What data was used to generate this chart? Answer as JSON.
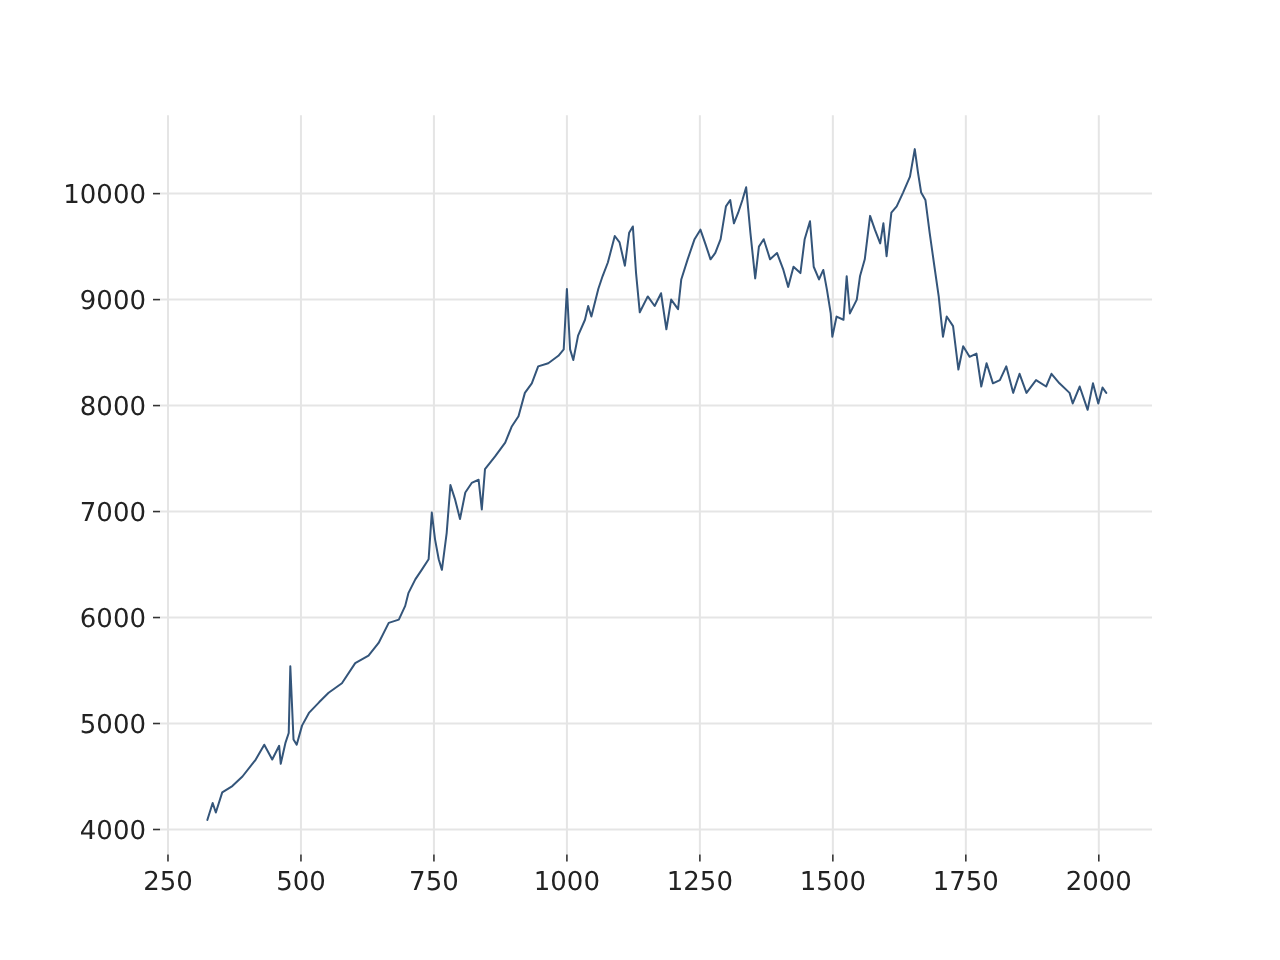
{
  "chart_data": {
    "type": "line",
    "color": "#34557a",
    "x": [
      324,
      334,
      340,
      352,
      371,
      390,
      415,
      431,
      446,
      459,
      462,
      471,
      477,
      480,
      486,
      492,
      502,
      515,
      534,
      552,
      577,
      602,
      627,
      646,
      665,
      684,
      696,
      702,
      715,
      727,
      740,
      746,
      752,
      759,
      765,
      774,
      781,
      790,
      799,
      809,
      821,
      834,
      840,
      846,
      865,
      884,
      896,
      909,
      921,
      934,
      946,
      965,
      984,
      994,
      1000,
      1006,
      1012,
      1021,
      1034,
      1040,
      1046,
      1059,
      1067,
      1077,
      1090,
      1099,
      1109,
      1117,
      1124,
      1130,
      1137,
      1152,
      1165,
      1177,
      1187,
      1196,
      1209,
      1215,
      1227,
      1240,
      1251,
      1260,
      1270,
      1279,
      1289,
      1299,
      1307,
      1314,
      1322,
      1330,
      1337,
      1345,
      1354,
      1361,
      1370,
      1382,
      1395,
      1407,
      1416,
      1426,
      1439,
      1447,
      1457,
      1464,
      1474,
      1482,
      1489,
      1496,
      1499,
      1507,
      1520,
      1526,
      1532,
      1545,
      1551,
      1560,
      1570,
      1579,
      1589,
      1595,
      1601,
      1610,
      1620,
      1632,
      1645,
      1654,
      1660,
      1666,
      1674,
      1682,
      1691,
      1699,
      1707,
      1714,
      1726,
      1736,
      1745,
      1757,
      1770,
      1779,
      1789,
      1801,
      1814,
      1826,
      1839,
      1851,
      1864,
      1882,
      1901,
      1911,
      1926,
      1945,
      1951,
      1964,
      1979,
      1989,
      1999,
      2007,
      2014
    ],
    "values": [
      4090,
      4250,
      4160,
      4350,
      4410,
      4500,
      4660,
      4800,
      4660,
      4790,
      4620,
      4820,
      4910,
      5540,
      4850,
      4800,
      4980,
      5100,
      5200,
      5290,
      5380,
      5570,
      5640,
      5760,
      5950,
      5980,
      6110,
      6230,
      6360,
      6450,
      6550,
      6990,
      6740,
      6550,
      6450,
      6800,
      7250,
      7110,
      6930,
      7180,
      7270,
      7300,
      7020,
      7400,
      7520,
      7650,
      7800,
      7900,
      8120,
      8210,
      8370,
      8400,
      8470,
      8530,
      9100,
      8530,
      8430,
      8660,
      8810,
      8940,
      8840,
      9100,
      9220,
      9350,
      9600,
      9540,
      9320,
      9630,
      9690,
      9250,
      8880,
      9030,
      8940,
      9060,
      8720,
      9000,
      8910,
      9190,
      9380,
      9570,
      9660,
      9530,
      9380,
      9440,
      9570,
      9880,
      9940,
      9720,
      9820,
      9940,
      10060,
      9630,
      9200,
      9500,
      9570,
      9380,
      9440,
      9280,
      9120,
      9310,
      9250,
      9570,
      9740,
      9310,
      9190,
      9280,
      9090,
      8870,
      8650,
      8840,
      8810,
      9220,
      8870,
      9000,
      9220,
      9380,
      9790,
      9660,
      9530,
      9720,
      9410,
      9820,
      9880,
      10010,
      10160,
      10420,
      10200,
      10010,
      9940,
      9630,
      9310,
      9030,
      8650,
      8840,
      8750,
      8340,
      8560,
      8460,
      8490,
      8180,
      8400,
      8210,
      8240,
      8370,
      8120,
      8300,
      8120,
      8240,
      8180,
      8300,
      8210,
      8120,
      8020,
      8180,
      7960,
      8210,
      8020,
      8170,
      8120
    ],
    "xlim": [
      235,
      2100
    ],
    "ylim": [
      3765,
      10740
    ],
    "xticks": [
      250,
      500,
      750,
      1000,
      1250,
      1500,
      1750,
      2000
    ],
    "yticks": [
      4000,
      5000,
      6000,
      7000,
      8000,
      9000,
      10000
    ],
    "grid": true
  }
}
